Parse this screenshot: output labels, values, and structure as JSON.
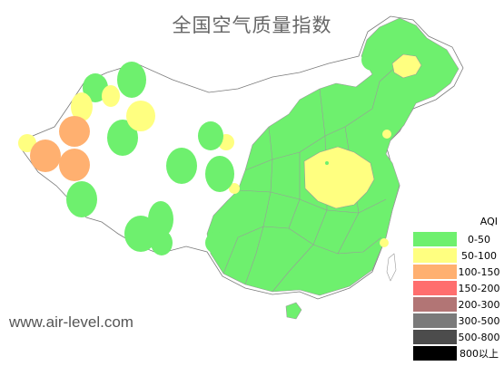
{
  "title": "全国空气质量指数",
  "watermark": "www.air-level.com",
  "legend": {
    "title": "AQI",
    "items": [
      {
        "label": "0-50",
        "color": "#6ef06e"
      },
      {
        "label": "50-100",
        "color": "#ffff80"
      },
      {
        "label": "100-150",
        "color": "#ffb070"
      },
      {
        "label": "150-200",
        "color": "#ff6e6e"
      },
      {
        "label": "200-300",
        "color": "#b27575"
      },
      {
        "label": "300-500",
        "color": "#7a7a7a"
      },
      {
        "label": "500-800",
        "color": "#4c4c4c"
      },
      {
        "label": "800以上",
        "color": "#000000"
      }
    ]
  }
}
